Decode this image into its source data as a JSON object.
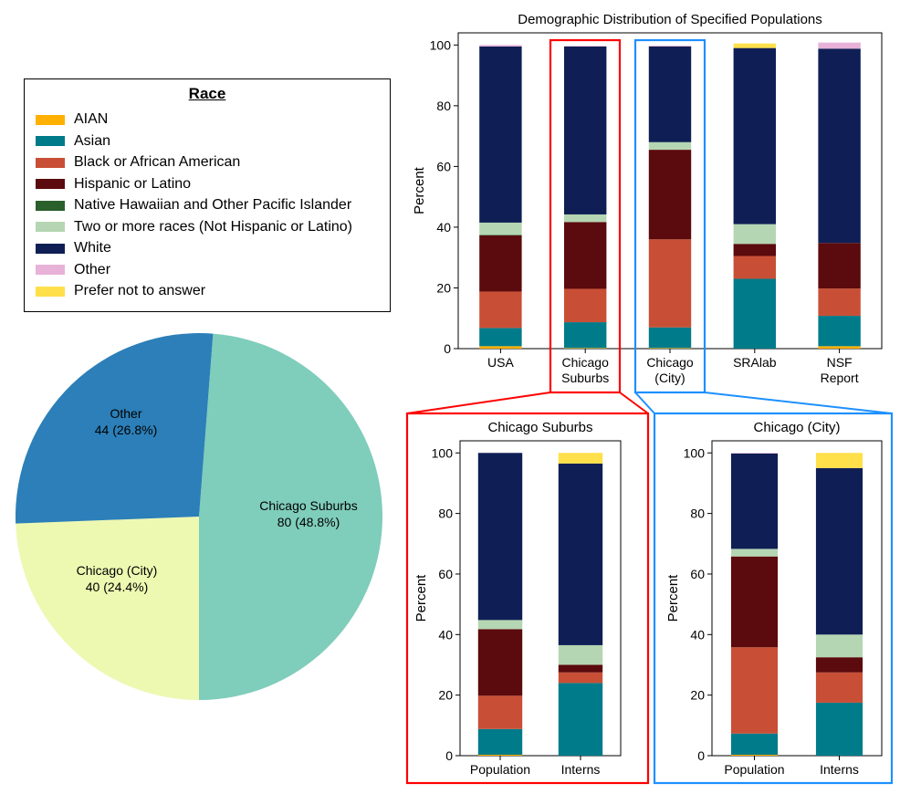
{
  "legend": {
    "title": "Race",
    "categories": [
      {
        "label": "AIAN",
        "color": "#ffb000"
      },
      {
        "label": "Asian",
        "color": "#007b8a"
      },
      {
        "label": "Black or African American",
        "color": "#c84f35"
      },
      {
        "label": "Hispanic or Latino",
        "color": "#5b0a0d"
      },
      {
        "label": "Native Hawaiian and Other Pacific Islander",
        "color": "#2b5f2b"
      },
      {
        "label": "Two or more races (Not Hispanic or Latino)",
        "color": "#b5d6b2"
      },
      {
        "label": "White",
        "color": "#0f1f55"
      },
      {
        "label": "Other",
        "color": "#e8b2d8"
      },
      {
        "label": "Prefer not to answer",
        "color": "#ffe04a"
      }
    ]
  },
  "chart_data": [
    {
      "type": "pie",
      "title": "",
      "slices": [
        {
          "label": "Chicago  Suburbs",
          "value": 80,
          "display": "80 (48.8%)",
          "color": "#7fcdbb"
        },
        {
          "label": "Chicago  (City)",
          "value": 40,
          "display": "40 (24.4%)",
          "color": "#edf8b1"
        },
        {
          "label": "Other",
          "value": 44,
          "display": "44 (26.8%)",
          "color": "#2c7fb8"
        }
      ]
    },
    {
      "type": "bar",
      "stacked": true,
      "title": "Demographic Distribution of Specified Populations",
      "ylabel": "Percent",
      "ylim": [
        0,
        104
      ],
      "yticks": [
        0,
        20,
        40,
        60,
        80,
        100
      ],
      "categories": [
        "USA",
        "Chicago\nSuburbs",
        "Chicago\n(City)",
        "SRAlab",
        "NSF\nReport"
      ],
      "series": [
        {
          "name": "AIAN",
          "values": [
            0.8,
            0.2,
            0.2,
            0,
            0.8
          ]
        },
        {
          "name": "Asian",
          "values": [
            6,
            8.5,
            6.8,
            23,
            10
          ]
        },
        {
          "name": "Black or African American",
          "values": [
            12,
            11,
            29,
            7.5,
            9
          ]
        },
        {
          "name": "Hispanic or Latino",
          "values": [
            18.5,
            22,
            29.5,
            4,
            15
          ]
        },
        {
          "name": "Native Hawaiian and Other Pacific Islander",
          "values": [
            0.2,
            0,
            0,
            0,
            0
          ]
        },
        {
          "name": "Two or more races (Not Hispanic or Latino)",
          "values": [
            4,
            2.5,
            2.5,
            6.5,
            0
          ]
        },
        {
          "name": "White",
          "values": [
            58,
            55.3,
            31.5,
            58,
            64
          ]
        },
        {
          "name": "Other",
          "values": [
            0.5,
            0.2,
            0.3,
            0,
            2
          ]
        },
        {
          "name": "Prefer not to answer",
          "values": [
            0,
            0,
            0,
            1.5,
            0
          ]
        }
      ]
    },
    {
      "type": "bar",
      "stacked": true,
      "title": "Chicago Suburbs",
      "ylabel": "Percent",
      "ylim": [
        0,
        104
      ],
      "yticks": [
        0,
        20,
        40,
        60,
        80,
        100
      ],
      "categories": [
        "Population",
        "Interns"
      ],
      "series": [
        {
          "name": "AIAN",
          "values": [
            0.3,
            0
          ]
        },
        {
          "name": "Asian",
          "values": [
            8.5,
            24
          ]
        },
        {
          "name": "Black or African American",
          "values": [
            11,
            3.5
          ]
        },
        {
          "name": "Hispanic or Latino",
          "values": [
            22,
            2.5
          ]
        },
        {
          "name": "Native Hawaiian and Other Pacific Islander",
          "values": [
            0,
            0
          ]
        },
        {
          "name": "Two or more races (Not Hispanic or Latino)",
          "values": [
            3,
            6.5
          ]
        },
        {
          "name": "White",
          "values": [
            55.2,
            60
          ]
        },
        {
          "name": "Other",
          "values": [
            0,
            0
          ]
        },
        {
          "name": "Prefer not to answer",
          "values": [
            0,
            3.5
          ]
        }
      ]
    },
    {
      "type": "bar",
      "stacked": true,
      "title": "Chicago (City)",
      "ylabel": "Percent",
      "ylim": [
        0,
        104
      ],
      "yticks": [
        0,
        20,
        40,
        60,
        80,
        100
      ],
      "categories": [
        "Population",
        "Interns"
      ],
      "series": [
        {
          "name": "AIAN",
          "values": [
            0.3,
            0
          ]
        },
        {
          "name": "Asian",
          "values": [
            7,
            17.5
          ]
        },
        {
          "name": "Black or African American",
          "values": [
            28.5,
            10
          ]
        },
        {
          "name": "Hispanic or Latino",
          "values": [
            30,
            5
          ]
        },
        {
          "name": "Native Hawaiian and Other Pacific Islander",
          "values": [
            0,
            0
          ]
        },
        {
          "name": "Two or more races (Not Hispanic or Latino)",
          "values": [
            2.5,
            7.5
          ]
        },
        {
          "name": "White",
          "values": [
            31.5,
            55
          ]
        },
        {
          "name": "Other",
          "values": [
            0.2,
            0
          ]
        },
        {
          "name": "Prefer not to answer",
          "values": [
            0,
            5
          ]
        }
      ]
    }
  ],
  "highlight_colors": {
    "suburbs": "#ff0000",
    "city": "#1e90ff"
  }
}
